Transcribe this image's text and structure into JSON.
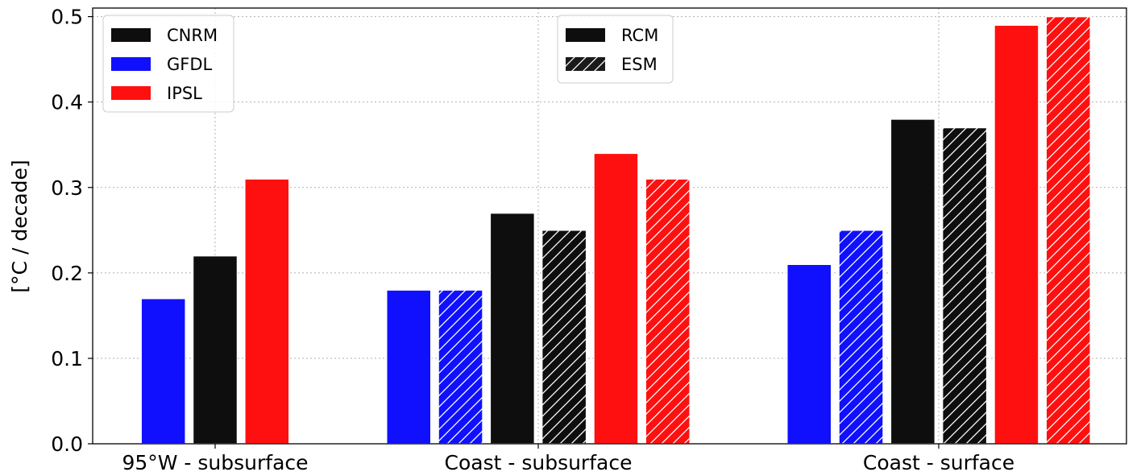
{
  "chart_data": {
    "type": "bar",
    "ylabel": "[°C / decade]",
    "ylim": [
      0,
      0.51
    ],
    "yticks": [
      "0.0",
      "0.1",
      "0.2",
      "0.3",
      "0.4",
      "0.5"
    ],
    "grid": true,
    "categories": [
      "95°W - subsurface",
      "Coast - subsurface",
      "Coast - surface"
    ],
    "colors": {
      "CNRM": "#0e0e0e",
      "GFDL": "#1010ff",
      "IPSL": "#ff1010"
    },
    "series": [
      {
        "name": "GFDL",
        "type": "RCM",
        "values": [
          0.17,
          0.18,
          0.21
        ]
      },
      {
        "name": "GFDL",
        "type": "ESM",
        "values": [
          null,
          0.18,
          0.25
        ]
      },
      {
        "name": "CNRM",
        "type": "RCM",
        "values": [
          0.22,
          0.27,
          0.38
        ]
      },
      {
        "name": "CNRM",
        "type": "ESM",
        "values": [
          null,
          0.25,
          0.37
        ]
      },
      {
        "name": "IPSL",
        "type": "RCM",
        "values": [
          0.31,
          0.34,
          0.49
        ]
      },
      {
        "name": "IPSL",
        "type": "ESM",
        "values": [
          null,
          0.31,
          0.5
        ]
      }
    ],
    "legend_models": {
      "placement": "top-left",
      "entries": [
        {
          "label": "CNRM",
          "color": "#0e0e0e"
        },
        {
          "label": "GFDL",
          "color": "#1010ff"
        },
        {
          "label": "IPSL",
          "color": "#ff1010"
        }
      ]
    },
    "legend_types": {
      "placement": "top-center",
      "entries": [
        {
          "label": "RCM",
          "hatched": false
        },
        {
          "label": "ESM",
          "hatched": true
        }
      ]
    }
  }
}
